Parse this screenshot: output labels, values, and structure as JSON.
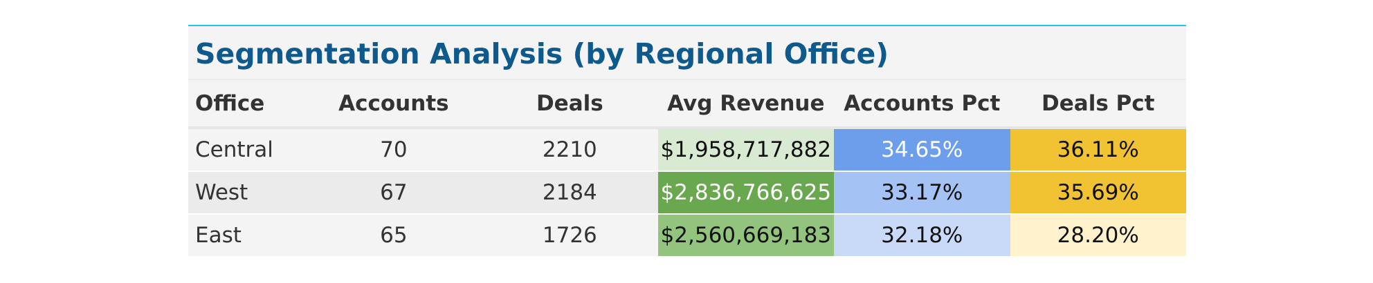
{
  "table": {
    "title": "Segmentation Analysis (by Regional Office)",
    "columns": [
      "Office",
      "Accounts",
      "Deals",
      "Avg Revenue",
      "Accounts Pct",
      "Deals Pct"
    ],
    "rows": [
      {
        "office": "Central",
        "accounts": "70",
        "deals": "2210",
        "avg_revenue": "$1,958,717,882",
        "accounts_pct": "34.65%",
        "deals_pct": "36.11%"
      },
      {
        "office": "West",
        "accounts": "67",
        "deals": "2184",
        "avg_revenue": "$2,836,766,625",
        "accounts_pct": "33.17%",
        "deals_pct": "35.69%"
      },
      {
        "office": "East",
        "accounts": "65",
        "deals": "1726",
        "avg_revenue": "$2,560,669,183",
        "accounts_pct": "32.18%",
        "deals_pct": "28.20%"
      }
    ],
    "colors": {
      "title": "#0f5a8c",
      "top_border": "#26c6e8",
      "avg_revenue": [
        "#d9ead3",
        "#6aa84f",
        "#93c47d"
      ],
      "accounts_pct": [
        "#6d9eeb",
        "#a4c2f4",
        "#c9daf8"
      ],
      "deals_pct": [
        "#f1c232",
        "#f1c232",
        "#fff2cc"
      ]
    }
  }
}
